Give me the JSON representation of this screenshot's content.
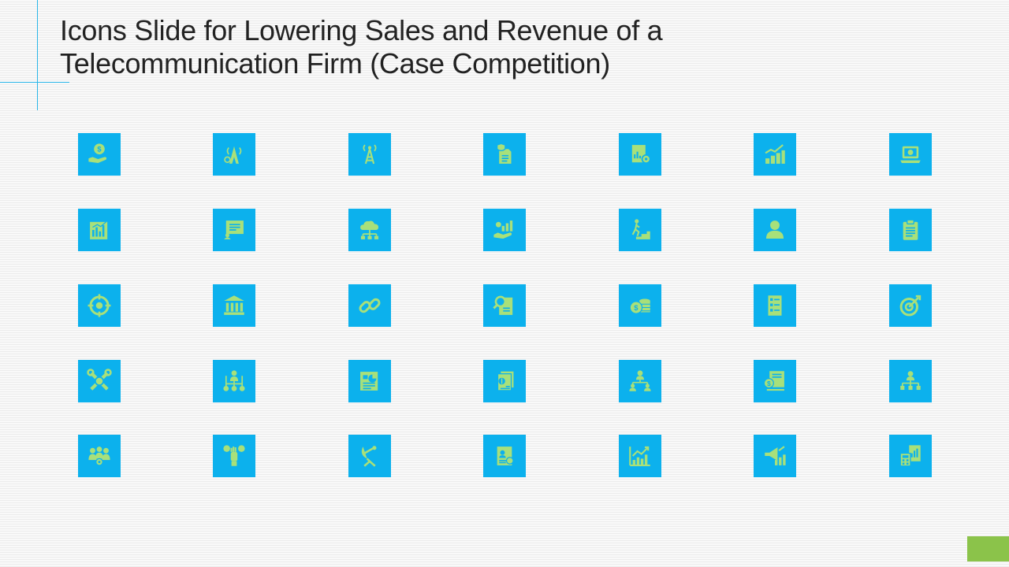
{
  "slide": {
    "title_line1": "Icons Slide for Lowering Sales and Revenue of a",
    "title_line2": "Telecommunication Firm (Case Competition)"
  },
  "colors": {
    "tile": "#0cb1ed",
    "glyph": "#a8e07a",
    "accent_line": "#29b6e8",
    "corner_block": "#8bc34a",
    "title_text": "#222222"
  },
  "icons": [
    "money-hand-icon",
    "tower-gear-icon",
    "radio-tower-icon",
    "document-shield-icon",
    "report-gear-icon",
    "stacked-growth-chart-icon",
    "laptop-dollar-icon",
    "bar-chart-document-icon",
    "presentation-checklist-icon",
    "cloud-network-icon",
    "hand-growth-chart-icon",
    "person-climbing-stairs-icon",
    "user-icon",
    "clipboard-icon",
    "crosshair-target-icon",
    "bank-icon",
    "chain-link-icon",
    "document-search-icon",
    "dollar-coins-icon",
    "checklist-icon",
    "target-arrow-icon",
    "tools-icon",
    "person-dollar-network-icon",
    "report-pie-icon",
    "financial-documents-icon",
    "team-hierarchy-icon",
    "dollar-report-icon",
    "org-chart-icon",
    "team-settings-icon",
    "hand-money-icon",
    "satellite-dish-icon",
    "profile-document-icon",
    "line-chart-growth-icon",
    "megaphone-growth-icon",
    "calculator-chart-icon"
  ]
}
